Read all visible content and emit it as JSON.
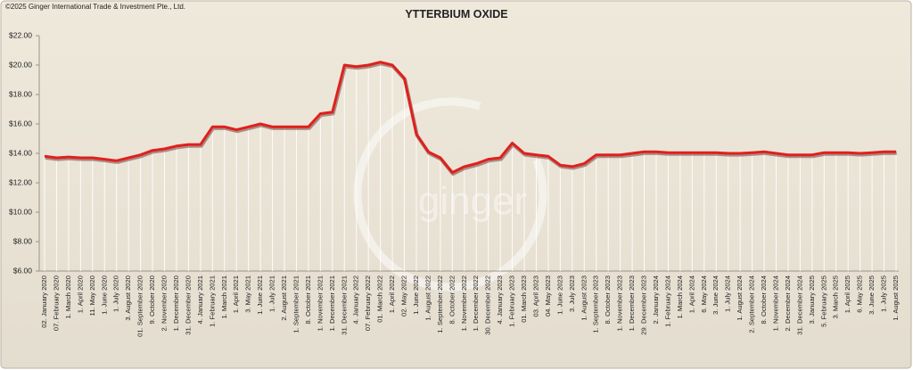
{
  "chart_data": {
    "type": "line",
    "title": "YTTERBIUM OXIDE",
    "copyright": "©2025 Ginger International Trade & Investment Pte., Ltd.",
    "watermark": "ginger",
    "categories": [
      "02. January 2020",
      "07. February 2020",
      "1. March 2020",
      "1. April 2020",
      "11. May 2020",
      "1. June 2020",
      "1. July 2020",
      "3. August 2020",
      "01. September 2020",
      "9. October 2020",
      "2. November 2020",
      "1. December 2020",
      "31. December 2020",
      "4. January 2021",
      "1. February 2021",
      "1. March 2021",
      "1. April 2021",
      "3. May 2021",
      "1. June 2021",
      "1. July 2021",
      "2. August 2021",
      "1. September 2021",
      "8. October 2021",
      "1. November 2021",
      "1. December 2021",
      "31. December 2021",
      "4. January 2022",
      "07. February 2022",
      "01. March 2022",
      "1. April 2022",
      "02. May 2022",
      "1. June 2022",
      "1. August 2022",
      "1. September 2022",
      "8. October 2022",
      "1. November 2022",
      "1. December 2022",
      "30. December 2022",
      "4. January 2023",
      "1. February 2023",
      "01. March 2023",
      "03. April 2023",
      "04. May 2023",
      "1. June 2023",
      "3. July 2023",
      "1. August 2023",
      "1. September 2023",
      "8. October 2023",
      "1. November 2023",
      "1. December 2023",
      "29. December 2023",
      "2. January 2024",
      "1. February 2024",
      "1. March 2024",
      "1. April 2024",
      "6. May 2024",
      "3. June 2024",
      "1. July 2024",
      "1. August 2024",
      "2. September 2024",
      "8. October 2024",
      "1. November 2024",
      "2. December 2024",
      "31. December 2024",
      "3. January 2025",
      "5. February 2025",
      "3. March 2025",
      "1. April 2025",
      "6. May 2025",
      "3. June 2025",
      "1. July 2025",
      "1. August 2025"
    ],
    "series": [
      {
        "name": "Ytterbium Oxide",
        "color": "#e0201c",
        "values": [
          13.8,
          13.7,
          13.75,
          13.7,
          13.7,
          13.6,
          13.5,
          13.7,
          13.9,
          14.2,
          14.3,
          14.5,
          14.6,
          14.6,
          15.8,
          15.8,
          15.6,
          15.8,
          16.0,
          15.8,
          15.8,
          15.8,
          15.8,
          16.7,
          16.8,
          20.0,
          19.9,
          20.0,
          20.2,
          20.0,
          19.1,
          15.3,
          14.1,
          13.7,
          12.7,
          13.1,
          13.3,
          13.6,
          13.7,
          14.7,
          14.0,
          13.9,
          13.8,
          13.2,
          13.1,
          13.3,
          13.9,
          13.9,
          13.9,
          14.0,
          14.1,
          14.1,
          14.05,
          14.05,
          14.05,
          14.05,
          14.05,
          14.0,
          14.0,
          14.05,
          14.1,
          14.0,
          13.9,
          13.9,
          13.9,
          14.05,
          14.05,
          14.05,
          14.0,
          14.05,
          14.1,
          14.1
        ]
      }
    ],
    "ylim": [
      6,
      22
    ],
    "yticks": [
      {
        "value": 6,
        "label": "$6.00"
      },
      {
        "value": 8,
        "label": "$8.00"
      },
      {
        "value": 10,
        "label": "$10.00"
      },
      {
        "value": 12,
        "label": "$12.00"
      },
      {
        "value": 14,
        "label": "$14.00"
      },
      {
        "value": 16,
        "label": "$16.00"
      },
      {
        "value": 18,
        "label": "$18.00"
      },
      {
        "value": 20,
        "label": "$20.00"
      },
      {
        "value": 22,
        "label": "$22.00"
      }
    ],
    "grid": false
  }
}
